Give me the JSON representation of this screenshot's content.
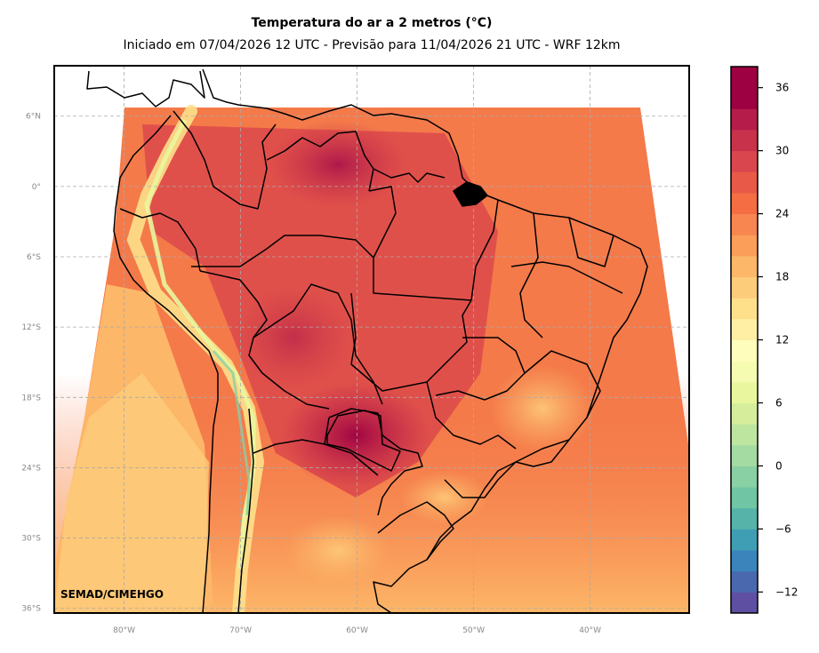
{
  "title": "Temperatura do ar a 2 metros (°C)",
  "subtitle": "Iniciado em 07/04/2026 12 UTC - Previsão para 11/04/2026 21 UTC - WRF 12km",
  "credit": "SEMAD/CIMEHGO",
  "map": {
    "projection": "lat-lon",
    "lon_ticks": [
      {
        "value": -80,
        "label": "80°W"
      },
      {
        "value": -70,
        "label": "70°W"
      },
      {
        "value": -60,
        "label": "60°W"
      },
      {
        "value": -50,
        "label": "50°W"
      },
      {
        "value": -40,
        "label": "40°W"
      }
    ],
    "lat_ticks": [
      {
        "value": 6,
        "label": "6°N"
      },
      {
        "value": 0,
        "label": "0°"
      },
      {
        "value": -6,
        "label": "6°S"
      },
      {
        "value": -12,
        "label": "12°S"
      },
      {
        "value": -18,
        "label": "18°S"
      },
      {
        "value": -24,
        "label": "24°S"
      },
      {
        "value": -30,
        "label": "30°S"
      },
      {
        "value": -36,
        "label": "36°S"
      }
    ],
    "extent": {
      "lon": [
        -86,
        -31.5
      ],
      "lat": [
        -36.4,
        10.3
      ]
    },
    "gridlines": true
  },
  "colorbar": {
    "unit": "°C",
    "min": -14,
    "max": 38,
    "step": 2,
    "tick_values": [
      36,
      30,
      24,
      18,
      12,
      6,
      0,
      -6,
      -12
    ],
    "tick_labels": [
      "36",
      "30",
      "24",
      "18",
      "12",
      "6",
      "0",
      "−6",
      "−12"
    ],
    "colors": [
      "#5e4fa2",
      "#4a68ae",
      "#3a84bb",
      "#3f9eb3",
      "#56b3a9",
      "#70c5a4",
      "#89d0a4",
      "#a3dba3",
      "#bee5a0",
      "#d6ee9b",
      "#e9f69d",
      "#f5fbb0",
      "#fffdbc",
      "#feefa4",
      "#fee08b",
      "#fdcc7a",
      "#fdb768",
      "#fb9e5a",
      "#f88650",
      "#f46d43",
      "#e85a47",
      "#da464d",
      "#c9324b",
      "#b61c4a",
      "#9e0142",
      "#9e0142"
    ]
  }
}
